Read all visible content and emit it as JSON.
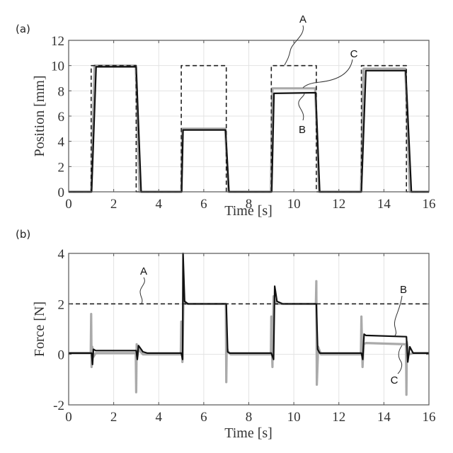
{
  "chart_data": [
    {
      "panel": "(a)",
      "type": "line",
      "title": "",
      "xlabel": "Time [s]",
      "ylabel": "Position [mm]",
      "xlim": [
        0,
        16
      ],
      "ylim": [
        0,
        12
      ],
      "xticks": [
        0,
        2,
        4,
        6,
        8,
        10,
        12,
        14,
        16
      ],
      "yticks": [
        0,
        2,
        4,
        6,
        8,
        10,
        12
      ],
      "grid": true,
      "series": [
        {
          "name": "A",
          "style": "dashed",
          "color": "#222222",
          "x": [
            0,
            1,
            1,
            3,
            3,
            5,
            5,
            7,
            7,
            9,
            9,
            11,
            11,
            13,
            13,
            15,
            15,
            16
          ],
          "y": [
            0,
            0,
            10,
            10,
            0,
            0,
            10,
            10,
            0,
            0,
            10,
            10,
            0,
            0,
            10,
            10,
            0,
            0
          ]
        },
        {
          "name": "C",
          "style": "solid",
          "color": "#aaaaaa",
          "x": [
            0,
            1.0,
            1.15,
            2.98,
            3.15,
            5.0,
            5.05,
            6.95,
            7.1,
            8.98,
            9.05,
            10.95,
            11.12,
            12.98,
            13.1,
            14.95,
            15.15,
            16
          ],
          "y": [
            0,
            0,
            10.0,
            10.0,
            0,
            0,
            5.0,
            5.0,
            0,
            0,
            8.2,
            8.2,
            0,
            0,
            9.75,
            9.75,
            0,
            0
          ]
        },
        {
          "name": "B",
          "style": "solid",
          "color": "#111111",
          "x": [
            0,
            1.02,
            1.22,
            3.0,
            3.22,
            5.02,
            5.08,
            6.97,
            7.12,
            9.02,
            9.12,
            10.97,
            11.15,
            13.0,
            13.2,
            14.97,
            15.22,
            16
          ],
          "y": [
            0,
            0,
            9.9,
            9.9,
            0,
            0,
            4.9,
            4.9,
            0,
            0,
            7.8,
            7.85,
            0,
            0,
            9.6,
            9.6,
            0,
            0
          ]
        }
      ],
      "annotations": [
        {
          "label": "A",
          "points_to": "dashed reference at t≈11 s"
        },
        {
          "label": "C",
          "points_to": "grey trace at t≈11 s"
        },
        {
          "label": "B",
          "points_to": "black trace at t≈10.3 s"
        }
      ]
    },
    {
      "panel": "(b)",
      "type": "line",
      "title": "",
      "xlabel": "Time [s]",
      "ylabel": "Force [N]",
      "xlim": [
        0,
        16
      ],
      "ylim": [
        -2,
        4
      ],
      "xticks": [
        0,
        2,
        4,
        6,
        8,
        10,
        12,
        14,
        16
      ],
      "yticks": [
        -2,
        0,
        2,
        4
      ],
      "grid": true,
      "series": [
        {
          "name": "A",
          "style": "dashed",
          "color": "#222222",
          "x": [
            0,
            16
          ],
          "y": [
            2,
            2
          ]
        },
        {
          "name": "C",
          "style": "solid",
          "color": "#aaaaaa",
          "x": [
            0,
            0.98,
            1.0,
            1.02,
            1.05,
            1.1,
            1.2,
            2.98,
            3.0,
            3.02,
            3.05,
            3.1,
            3.3,
            4.98,
            5.0,
            5.05,
            5.1,
            5.2,
            5.4,
            6.98,
            7.0,
            7.02,
            7.08,
            7.2,
            8.98,
            9.0,
            9.05,
            9.1,
            9.2,
            9.4,
            10.98,
            11.0,
            11.02,
            11.08,
            11.2,
            12.98,
            13.0,
            13.05,
            13.1,
            13.2,
            14.98,
            15.0,
            15.02,
            15.1,
            15.3,
            16
          ],
          "y": [
            0.05,
            0.05,
            1.6,
            -0.5,
            0.3,
            -0.1,
            0.05,
            0.05,
            -1.5,
            0.4,
            -0.1,
            0.2,
            0.0,
            0.0,
            1.3,
            -0.3,
            2.2,
            2.0,
            2.0,
            2.0,
            -1.1,
            0.3,
            0.1,
            0.0,
            0.0,
            1.5,
            -0.5,
            2.3,
            2.0,
            2.0,
            2.0,
            2.9,
            -1.2,
            0.3,
            0.0,
            0.0,
            1.5,
            -0.5,
            0.4,
            0.45,
            0.4,
            -1.6,
            0.5,
            0.0,
            0.05,
            0.05
          ]
        },
        {
          "name": "B",
          "style": "solid",
          "color": "#111111",
          "x": [
            0,
            1.02,
            1.06,
            1.1,
            1.2,
            1.3,
            3.0,
            3.05,
            3.1,
            3.3,
            3.5,
            5.0,
            5.06,
            5.08,
            5.15,
            5.3,
            7.0,
            7.06,
            7.15,
            7.3,
            9.0,
            9.1,
            9.15,
            9.25,
            9.5,
            11.0,
            11.06,
            11.15,
            11.3,
            13.0,
            13.06,
            13.12,
            13.2,
            15.0,
            15.06,
            15.15,
            15.3,
            16
          ],
          "y": [
            0.05,
            0.05,
            -0.4,
            0.2,
            0.15,
            0.15,
            0.15,
            -0.2,
            0.35,
            0.1,
            0.05,
            0.05,
            -0.2,
            4.0,
            2.1,
            2.0,
            2.0,
            0.1,
            0.05,
            0.05,
            0.05,
            -0.2,
            2.7,
            2.1,
            2.0,
            2.0,
            0.2,
            0.05,
            0.05,
            0.05,
            -0.2,
            0.8,
            0.75,
            0.7,
            -0.3,
            0.3,
            0.05,
            0.05
          ]
        }
      ],
      "annotations": [
        {
          "label": "A",
          "points_to": "dashed reference at t≈4 s"
        },
        {
          "label": "B",
          "points_to": "black trace at t≈14.3 s"
        },
        {
          "label": "C",
          "points_to": "grey trace at t≈14.7 s"
        }
      ]
    }
  ]
}
